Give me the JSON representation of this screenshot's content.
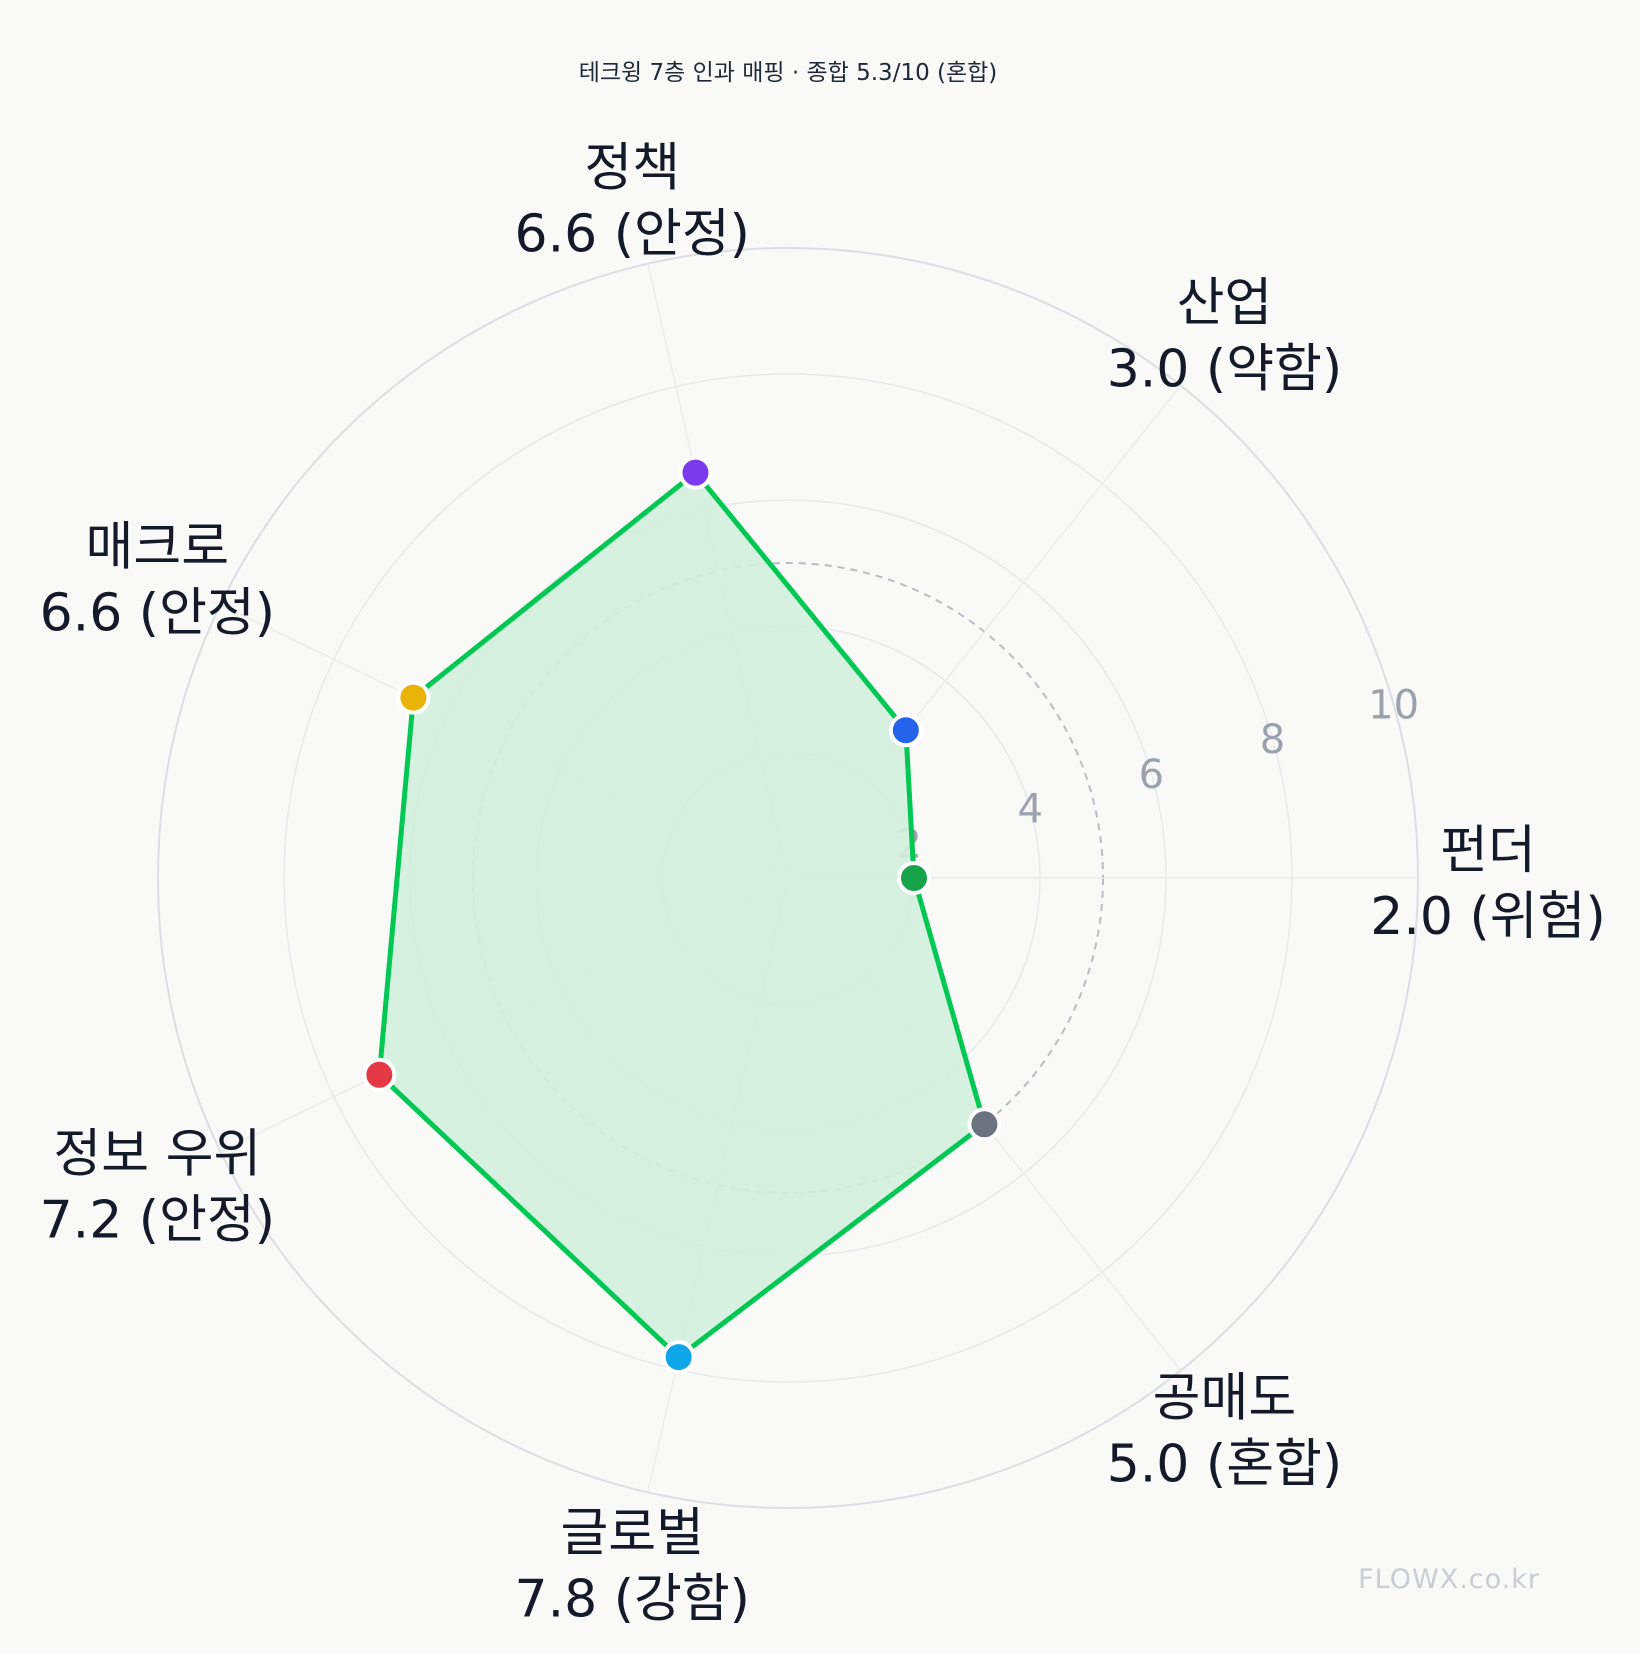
{
  "chart_data": {
    "type": "radar",
    "title": "테크윙 7층 인과 매핑 · 종합 5.3/10 (혼합)",
    "rmax": 10,
    "ring_labels": [
      "2",
      "4",
      "6",
      "8",
      "10"
    ],
    "reference_ring": 5.0,
    "axes": [
      {
        "name": "펀더",
        "value": 2.0,
        "value_text": "2.0 (위험)",
        "color": "#16a34a"
      },
      {
        "name": "산업",
        "value": 3.0,
        "value_text": "3.0 (약함)",
        "color": "#2563eb"
      },
      {
        "name": "정책",
        "value": 6.6,
        "value_text": "6.6 (안정)",
        "color": "#7c3aed"
      },
      {
        "name": "매크로",
        "value": 6.6,
        "value_text": "6.6 (안정)",
        "color": "#eab308"
      },
      {
        "name": "정보 우위",
        "value": 7.2,
        "value_text": "7.2 (안정)",
        "color": "#e53945"
      },
      {
        "name": "글로벌",
        "value": 7.8,
        "value_text": "7.8 (강함)",
        "color": "#0ea5e9"
      },
      {
        "name": "공매도",
        "value": 5.0,
        "value_text": "5.0 (혼합)",
        "color": "#6b7280"
      }
    ],
    "polygon_stroke": "#00c853",
    "polygon_fill": "#d3f0de"
  },
  "watermark": "FLOWX.co.kr"
}
